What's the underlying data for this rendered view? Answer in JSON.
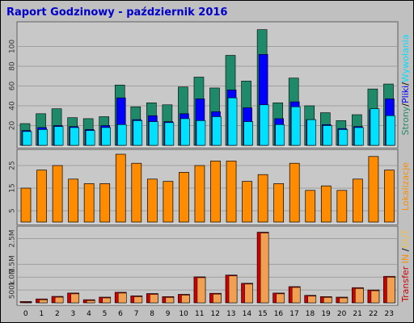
{
  "title": "Raport Godzinowy -  październik 2016",
  "colors": {
    "title": "#0000cc",
    "strony": "#1e8a6a",
    "pliki": "#0000ff",
    "wywolania": "#00e0ff",
    "lokalizacje": "#ff8c00",
    "transfer": "#d00000",
    "transfer_in_out": "#f0a050",
    "side_in": "#ff8c00",
    "side_out": "#f0c040",
    "panel_bg": "#c8c8c8",
    "grid": "#a0a0a0"
  },
  "side_labels": {
    "top": [
      "Strony",
      "/",
      "Pliki",
      "/",
      "Wywołania"
    ],
    "middle": "Lokalizacje",
    "bottom": [
      "Transfer",
      "IN",
      "/",
      "OUT"
    ]
  },
  "chart_data": [
    {
      "type": "bar",
      "panel": "top",
      "title": "Raport Godzinowy -  październik 2016",
      "categories": [
        "0",
        "1",
        "2",
        "3",
        "4",
        "5",
        "6",
        "7",
        "8",
        "9",
        "10",
        "11",
        "12",
        "13",
        "14",
        "15",
        "16",
        "17",
        "18",
        "19",
        "20",
        "21",
        "22",
        "23"
      ],
      "yticks": [
        "20",
        "40",
        "60",
        "80",
        "100"
      ],
      "ylim": [
        0,
        120
      ],
      "grid": true,
      "series": [
        {
          "name": "Strony",
          "values": [
            22,
            32,
            37,
            28,
            27,
            29,
            61,
            39,
            43,
            41,
            59,
            69,
            58,
            91,
            65,
            117,
            43,
            68,
            40,
            33,
            25,
            31,
            57,
            62
          ]
        },
        {
          "name": "Pliki",
          "values": [
            15,
            18,
            20,
            19,
            16,
            20,
            48,
            26,
            30,
            24,
            32,
            47,
            34,
            56,
            38,
            92,
            27,
            44,
            26,
            21,
            17,
            19,
            36,
            47
          ]
        },
        {
          "name": "Wywołania",
          "values": [
            14,
            16,
            19,
            18,
            15,
            18,
            21,
            25,
            24,
            23,
            27,
            25,
            29,
            48,
            24,
            41,
            21,
            39,
            26,
            20,
            16,
            18,
            37,
            30
          ]
        }
      ]
    },
    {
      "type": "bar",
      "panel": "middle",
      "categories": [
        "0",
        "1",
        "2",
        "3",
        "4",
        "5",
        "6",
        "7",
        "8",
        "9",
        "10",
        "11",
        "12",
        "13",
        "14",
        "15",
        "16",
        "17",
        "18",
        "19",
        "20",
        "21",
        "22",
        "23"
      ],
      "yticks": [
        "5",
        "15",
        "25"
      ],
      "ylim": [
        0,
        30
      ],
      "grid": true,
      "series": [
        {
          "name": "Lokalizacje",
          "values": [
            15,
            23,
            25,
            19,
            17,
            17,
            30,
            26,
            19,
            18,
            22,
            25,
            27,
            27,
            18,
            21,
            17,
            26,
            14,
            16,
            14,
            19,
            29,
            23
          ]
        }
      ]
    },
    {
      "type": "bar",
      "panel": "bottom",
      "categories": [
        "0",
        "1",
        "2",
        "3",
        "4",
        "5",
        "6",
        "7",
        "8",
        "9",
        "10",
        "11",
        "12",
        "13",
        "14",
        "15",
        "16",
        "17",
        "18",
        "19",
        "20",
        "21",
        "22",
        "23"
      ],
      "yticks": [
        "500k",
        "1.0M",
        "1.5M",
        "2.5M"
      ],
      "ylim": [
        0,
        2800000
      ],
      "grid": true,
      "series": [
        {
          "name": "Transfer",
          "values": [
            50000,
            150000,
            250000,
            380000,
            120000,
            220000,
            410000,
            270000,
            360000,
            240000,
            330000,
            1010000,
            370000,
            1080000,
            760000,
            2750000,
            380000,
            630000,
            290000,
            240000,
            220000,
            590000,
            500000,
            1030000
          ]
        }
      ]
    }
  ]
}
